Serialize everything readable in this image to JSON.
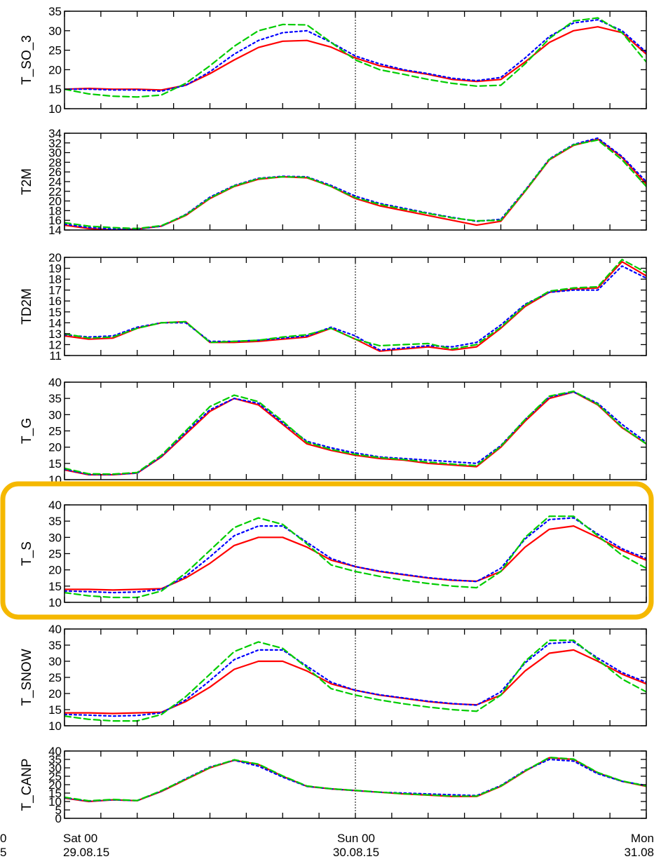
{
  "highlight_color": "#F5B800",
  "highlighted_panel": "T_S",
  "x_labels": [
    {
      "day": "0",
      "date": "5"
    },
    {
      "day": "Sat 00",
      "date": "29.08.15"
    },
    {
      "day": "Sun 00",
      "date": "30.08.15"
    },
    {
      "day": "Mon",
      "date": "31.08"
    }
  ],
  "chart_data": [
    {
      "type": "line",
      "ylabel": "T_SO_3",
      "ylim": [
        10,
        35
      ],
      "yticks": [
        10,
        15,
        20,
        25,
        30,
        35
      ],
      "x": [
        0,
        2,
        4,
        6,
        8,
        10,
        12,
        14,
        16,
        18,
        20,
        22,
        24,
        26,
        28,
        30,
        32,
        34,
        36,
        38,
        40,
        42,
        44,
        46,
        48
      ],
      "series": [
        {
          "color": "#ff0000",
          "dash": "solid",
          "values": [
            15.0,
            15.2,
            15.0,
            15.0,
            14.8,
            16.0,
            19.0,
            22.5,
            25.7,
            27.3,
            27.5,
            25.8,
            23.0,
            21.0,
            19.8,
            18.8,
            17.5,
            17.0,
            17.5,
            22.0,
            27.0,
            30.0,
            31.0,
            29.5,
            24.0
          ]
        },
        {
          "color": "#0000ff",
          "dash": "dotted",
          "values": [
            15.0,
            15.0,
            14.8,
            14.8,
            14.5,
            16.0,
            19.5,
            24.0,
            27.5,
            29.5,
            30.0,
            27.0,
            23.5,
            21.5,
            20.0,
            19.0,
            17.8,
            17.2,
            18.0,
            23.0,
            28.5,
            32.0,
            32.8,
            30.0,
            24.5
          ]
        },
        {
          "color": "#00cc00",
          "dash": "dashed",
          "values": [
            15.0,
            13.8,
            13.2,
            13.0,
            13.5,
            16.5,
            21.0,
            26.0,
            30.0,
            31.6,
            31.5,
            27.0,
            22.5,
            20.0,
            18.8,
            17.5,
            16.5,
            15.8,
            16.0,
            21.5,
            28.0,
            32.5,
            33.3,
            29.5,
            22.0
          ]
        }
      ]
    },
    {
      "type": "line",
      "ylabel": "T2M",
      "ylim": [
        14,
        34
      ],
      "yticks": [
        14,
        16,
        18,
        20,
        22,
        24,
        26,
        28,
        30,
        32,
        34
      ],
      "x": [
        0,
        2,
        4,
        6,
        8,
        10,
        12,
        14,
        16,
        18,
        20,
        22,
        24,
        26,
        28,
        30,
        32,
        34,
        36,
        38,
        40,
        42,
        44,
        46,
        48
      ],
      "series": [
        {
          "color": "#ff0000",
          "dash": "solid",
          "values": [
            15.0,
            14.3,
            14.0,
            14.2,
            14.8,
            17.0,
            20.5,
            23.0,
            24.5,
            25.0,
            24.8,
            23.0,
            20.5,
            19.0,
            18.0,
            17.0,
            16.0,
            15.0,
            15.8,
            22.0,
            28.5,
            31.5,
            32.8,
            29.0,
            23.5
          ]
        },
        {
          "color": "#0000ff",
          "dash": "dotted",
          "values": [
            15.2,
            14.5,
            14.2,
            14.2,
            14.8,
            17.2,
            20.8,
            23.2,
            24.7,
            25.1,
            25.0,
            23.2,
            21.0,
            19.5,
            18.5,
            17.5,
            16.6,
            15.8,
            16.2,
            22.2,
            28.7,
            31.7,
            33.0,
            29.2,
            24.0
          ]
        },
        {
          "color": "#00cc00",
          "dash": "dashed",
          "values": [
            15.5,
            14.8,
            14.5,
            14.3,
            14.9,
            17.1,
            20.6,
            23.1,
            24.6,
            25.0,
            24.9,
            23.0,
            20.7,
            19.3,
            18.3,
            17.4,
            16.5,
            15.9,
            16.0,
            22.1,
            28.6,
            31.6,
            32.6,
            28.5,
            23.0
          ]
        }
      ]
    },
    {
      "type": "line",
      "ylabel": "TD2M",
      "ylim": [
        11,
        20
      ],
      "yticks": [
        11,
        12,
        13,
        14,
        15,
        16,
        17,
        18,
        19,
        20
      ],
      "x": [
        0,
        2,
        4,
        6,
        8,
        10,
        12,
        14,
        16,
        18,
        20,
        22,
        24,
        26,
        28,
        30,
        32,
        34,
        36,
        38,
        40,
        42,
        44,
        46,
        48
      ],
      "series": [
        {
          "color": "#ff0000",
          "dash": "solid",
          "values": [
            12.8,
            12.5,
            12.6,
            13.5,
            14.0,
            14.1,
            12.2,
            12.2,
            12.3,
            12.5,
            12.7,
            13.5,
            12.5,
            11.4,
            11.6,
            11.8,
            11.5,
            11.8,
            13.5,
            15.5,
            16.8,
            17.1,
            17.2,
            19.6,
            18.3
          ]
        },
        {
          "color": "#0000ff",
          "dash": "dotted",
          "values": [
            12.9,
            12.7,
            12.8,
            13.6,
            14.0,
            14.0,
            12.3,
            12.3,
            12.4,
            12.6,
            12.8,
            13.6,
            12.8,
            11.5,
            11.7,
            11.9,
            11.8,
            12.2,
            13.8,
            15.7,
            16.8,
            17.0,
            17.0,
            19.2,
            18.1
          ]
        },
        {
          "color": "#00cc00",
          "dash": "dashed",
          "values": [
            13.0,
            12.6,
            12.7,
            13.5,
            14.0,
            14.1,
            12.2,
            12.3,
            12.4,
            12.7,
            12.9,
            13.5,
            12.5,
            11.9,
            12.0,
            12.1,
            11.6,
            12.0,
            13.6,
            15.6,
            16.9,
            17.2,
            17.3,
            19.8,
            18.6
          ]
        }
      ]
    },
    {
      "type": "line",
      "ylabel": "T_G",
      "ylim": [
        10,
        40
      ],
      "yticks": [
        10,
        15,
        20,
        25,
        30,
        35,
        40
      ],
      "x": [
        0,
        2,
        4,
        6,
        8,
        10,
        12,
        14,
        16,
        18,
        20,
        22,
        24,
        26,
        28,
        30,
        32,
        34,
        36,
        38,
        40,
        42,
        44,
        46,
        48
      ],
      "series": [
        {
          "color": "#ff0000",
          "dash": "solid",
          "values": [
            13.0,
            11.5,
            11.5,
            12.0,
            17.0,
            24.0,
            31.0,
            35.0,
            33.0,
            27.0,
            21.0,
            19.0,
            17.5,
            16.5,
            16.0,
            15.0,
            14.5,
            14.0,
            20.0,
            28.0,
            35.0,
            37.0,
            33.0,
            26.0,
            21.0
          ]
        },
        {
          "color": "#0000ff",
          "dash": "dotted",
          "values": [
            13.2,
            11.6,
            11.6,
            12.0,
            17.2,
            24.5,
            31.5,
            35.0,
            33.5,
            27.5,
            21.8,
            19.8,
            18.2,
            17.0,
            16.5,
            16.0,
            15.5,
            15.0,
            20.5,
            28.5,
            35.5,
            37.0,
            33.5,
            27.0,
            21.5
          ]
        },
        {
          "color": "#00cc00",
          "dash": "dashed",
          "values": [
            13.5,
            11.8,
            11.7,
            12.2,
            17.5,
            25.0,
            32.5,
            36.0,
            34.0,
            28.0,
            21.5,
            19.3,
            17.8,
            16.8,
            16.2,
            15.4,
            14.8,
            14.3,
            20.3,
            28.5,
            35.7,
            37.2,
            33.2,
            26.2,
            21.0
          ]
        }
      ]
    },
    {
      "type": "line",
      "ylabel": "T_S",
      "ylim": [
        10,
        40
      ],
      "yticks": [
        10,
        15,
        20,
        25,
        30,
        35,
        40
      ],
      "x": [
        0,
        2,
        4,
        6,
        8,
        10,
        12,
        14,
        16,
        18,
        20,
        22,
        24,
        26,
        28,
        30,
        32,
        34,
        36,
        38,
        40,
        42,
        44,
        46,
        48
      ],
      "series": [
        {
          "color": "#ff0000",
          "dash": "solid",
          "values": [
            14.0,
            14.0,
            13.8,
            14.0,
            14.2,
            17.5,
            22.0,
            27.5,
            30.0,
            30.0,
            27.0,
            23.0,
            21.0,
            19.5,
            18.5,
            17.5,
            16.8,
            16.5,
            19.5,
            27.0,
            32.5,
            33.5,
            30.0,
            26.0,
            23.0
          ]
        },
        {
          "color": "#0000ff",
          "dash": "dotted",
          "values": [
            13.5,
            13.3,
            13.0,
            13.2,
            14.0,
            18.0,
            24.0,
            30.5,
            33.5,
            33.5,
            28.5,
            23.5,
            21.0,
            19.6,
            18.6,
            17.6,
            16.9,
            16.4,
            20.5,
            29.5,
            35.5,
            36.0,
            31.0,
            26.5,
            23.5
          ]
        },
        {
          "color": "#00cc00",
          "dash": "dashed",
          "values": [
            13.0,
            12.0,
            11.5,
            11.5,
            13.5,
            19.0,
            26.0,
            33.0,
            36.0,
            34.0,
            28.0,
            21.5,
            19.5,
            18.0,
            16.8,
            15.8,
            15.0,
            14.5,
            19.5,
            30.0,
            36.5,
            36.5,
            30.5,
            24.5,
            20.5
          ]
        }
      ]
    },
    {
      "type": "line",
      "ylabel": "T_SNOW",
      "ylim": [
        10,
        40
      ],
      "yticks": [
        10,
        15,
        20,
        25,
        30,
        35,
        40
      ],
      "x": [
        0,
        2,
        4,
        6,
        8,
        10,
        12,
        14,
        16,
        18,
        20,
        22,
        24,
        26,
        28,
        30,
        32,
        34,
        36,
        38,
        40,
        42,
        44,
        46,
        48
      ],
      "series": [
        {
          "color": "#ff0000",
          "dash": "solid",
          "values": [
            14.0,
            14.0,
            13.8,
            14.0,
            14.2,
            17.5,
            22.0,
            27.5,
            30.0,
            30.0,
            27.0,
            23.0,
            21.0,
            19.5,
            18.5,
            17.5,
            16.8,
            16.5,
            19.5,
            27.0,
            32.5,
            33.5,
            30.0,
            26.0,
            23.0
          ]
        },
        {
          "color": "#0000ff",
          "dash": "dotted",
          "values": [
            13.5,
            13.3,
            13.0,
            13.2,
            14.0,
            18.0,
            24.0,
            30.5,
            33.5,
            33.5,
            28.5,
            23.5,
            21.0,
            19.6,
            18.6,
            17.6,
            16.9,
            16.4,
            20.5,
            29.5,
            35.5,
            36.0,
            31.0,
            26.5,
            23.5
          ]
        },
        {
          "color": "#00cc00",
          "dash": "dashed",
          "values": [
            13.0,
            12.0,
            11.5,
            11.5,
            13.5,
            19.0,
            26.0,
            33.0,
            36.0,
            34.0,
            28.0,
            21.5,
            19.5,
            18.0,
            16.8,
            15.8,
            15.0,
            14.5,
            19.5,
            30.0,
            36.5,
            36.5,
            30.5,
            24.5,
            20.5
          ]
        }
      ]
    },
    {
      "type": "line",
      "ylabel": "T_CANP",
      "ylim": [
        0,
        40
      ],
      "yticks": [
        0,
        5,
        10,
        15,
        20,
        25,
        30,
        35,
        40
      ],
      "x": [
        0,
        2,
        4,
        6,
        8,
        10,
        12,
        14,
        16,
        18,
        20,
        22,
        24,
        26,
        28,
        30,
        32,
        34,
        36,
        38,
        40,
        42,
        44,
        46,
        48
      ],
      "series": [
        {
          "color": "#ff0000",
          "dash": "solid",
          "values": [
            12.0,
            10.0,
            11.0,
            10.5,
            16.0,
            23.0,
            30.0,
            34.5,
            32.0,
            25.0,
            19.0,
            17.5,
            16.5,
            15.5,
            14.5,
            13.8,
            13.0,
            13.0,
            19.0,
            28.0,
            36.0,
            35.0,
            27.0,
            22.0,
            19.0
          ]
        },
        {
          "color": "#0000ff",
          "dash": "dotted",
          "values": [
            12.2,
            10.2,
            11.0,
            10.5,
            16.2,
            23.5,
            30.5,
            34.5,
            31.0,
            24.5,
            19.0,
            17.5,
            16.5,
            15.5,
            15.0,
            14.5,
            14.0,
            13.5,
            19.5,
            28.5,
            35.0,
            34.0,
            26.5,
            22.0,
            19.5
          ]
        },
        {
          "color": "#00cc00",
          "dash": "dashed",
          "values": [
            12.5,
            10.4,
            11.2,
            10.6,
            16.4,
            23.2,
            30.2,
            34.8,
            32.2,
            25.2,
            19.2,
            17.6,
            16.6,
            15.6,
            14.6,
            13.9,
            13.2,
            13.2,
            19.2,
            28.2,
            36.2,
            35.2,
            27.2,
            22.2,
            19.2
          ]
        }
      ]
    }
  ]
}
